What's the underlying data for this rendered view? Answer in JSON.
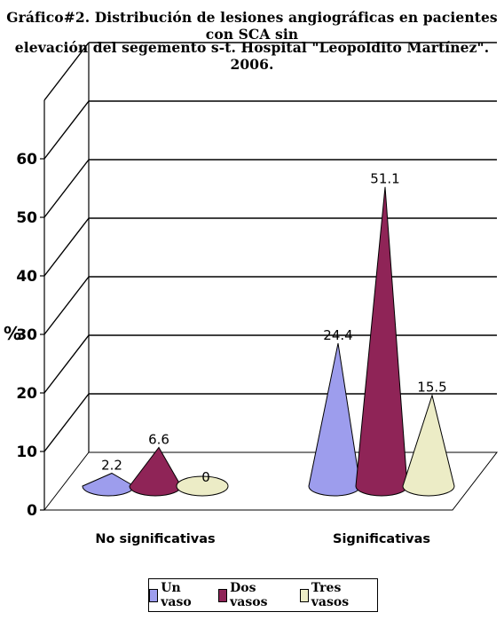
{
  "title_line1": "Gráfico#2. Distribución de lesiones angiográficas en pacientes con SCA sin",
  "title_line2": "elevación del segemento s-t. Hospital \"Leopoldito Martínez\". 2006.",
  "chart_data": {
    "type": "bar",
    "bar_shape": "3d-cone",
    "categories": [
      "No significativas",
      "Significativas"
    ],
    "series": [
      {
        "name": "Un vaso",
        "values": [
          2.2,
          24.4
        ],
        "color": "#9d9ded"
      },
      {
        "name": "Dos vasos",
        "values": [
          6.6,
          51.1
        ],
        "color": "#8f2457"
      },
      {
        "name": "Tres vasos",
        "values": [
          0,
          15.5
        ],
        "color": "#ececc6"
      }
    ],
    "ylabel": "%",
    "ylim": [
      0,
      60
    ],
    "yticks": [
      "0",
      "10",
      "20",
      "30",
      "40",
      "50",
      "60"
    ],
    "data_labels": [
      [
        "2.2",
        "6.6",
        "0"
      ],
      [
        "24.4",
        "51.1",
        "15.5"
      ]
    ],
    "grid": true,
    "legend_position": "bottom"
  }
}
